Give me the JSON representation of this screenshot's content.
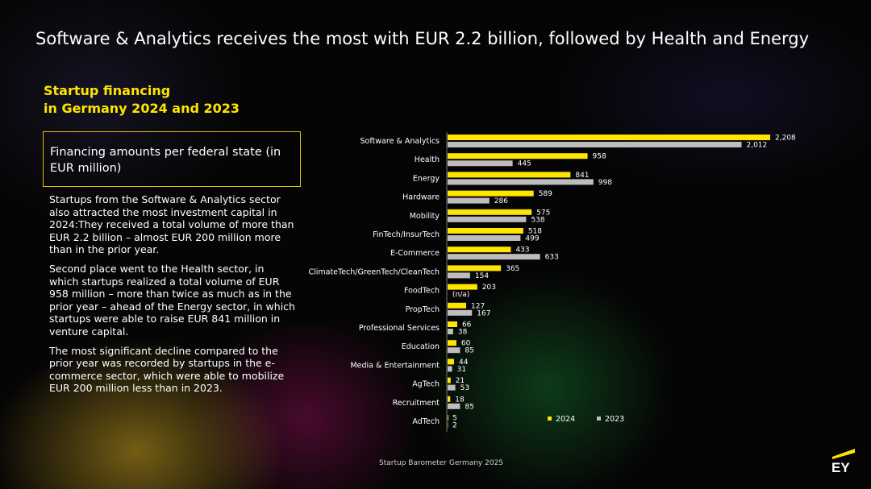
{
  "title": "Software & Analytics receives the most with EUR 2.2 billion, followed by Health and Energy",
  "subtitle_line1": "Startup financing",
  "subtitle_line2": "in Germany 2024 and 2023",
  "callout": "Financing amounts per federal state (in EUR million)",
  "paragraphs": [
    "Startups from the Software & Analytics sector also attracted the most investment capital in 2024:They received a total volume of more than EUR 2.2 billion – almost EUR 200 million more than in the prior year.",
    "Second place went to the Health sector, in which startups realized a total volume of EUR 958 million – more than twice as much as in the prior year – ahead of the Energy sector, in which startups were able to raise EUR 841 million in venture capital.",
    "The most significant decline compared to the prior year was recorded by startups in the e-commerce sector, which were able to mobilize EUR 200 million less than in 2023."
  ],
  "footer": "Startup Barometer Germany 2025",
  "logo_text": "EY",
  "colors": {
    "accent": "#ffe600",
    "series2024": "#ffe600",
    "series2023": "#bdbdbd"
  },
  "chart_data": {
    "type": "bar",
    "orientation": "horizontal",
    "title": "Financing amounts per federal state (in EUR million)",
    "categories": [
      "Software & Analytics",
      "Health",
      "Energy",
      "Hardware",
      "Mobility",
      "FinTech/InsurTech",
      "E-Commerce",
      "ClimateTech/GreenTech/CleanTech",
      "FoodTech",
      "PropTech",
      "Professional Services",
      "Education",
      "Media & Entertainment",
      "AgTech",
      "Recruitment",
      "AdTech"
    ],
    "series": [
      {
        "name": "2024",
        "values": [
          2208,
          958,
          841,
          589,
          575,
          518,
          433,
          365,
          203,
          127,
          66,
          60,
          44,
          21,
          18,
          5
        ],
        "labels": [
          "2,208",
          "958",
          "841",
          "589",
          "575",
          "518",
          "433",
          "365",
          "203",
          "127",
          "66",
          "60",
          "44",
          "21",
          "18",
          "5"
        ]
      },
      {
        "name": "2023",
        "values": [
          2012,
          445,
          998,
          286,
          538,
          499,
          633,
          154,
          null,
          167,
          38,
          85,
          31,
          53,
          85,
          2
        ],
        "labels": [
          "2,012",
          "445",
          "998",
          "286",
          "538",
          "499",
          "633",
          "154",
          "(n/a)",
          "167",
          "38",
          "85",
          "31",
          "53",
          "85",
          "2"
        ]
      }
    ],
    "legend": [
      "2024",
      "2023"
    ],
    "legend_position": "bottom-right",
    "xlim": [
      0,
      2208
    ]
  }
}
